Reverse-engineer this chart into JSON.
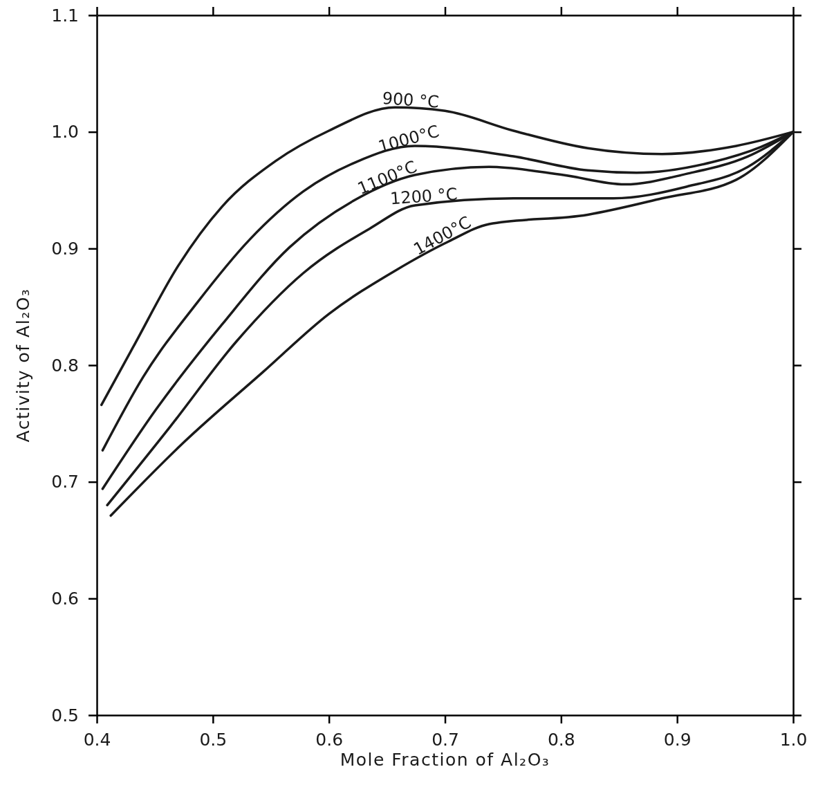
{
  "chart_data": {
    "type": "line",
    "xlabel": "Mole Fraction of Al₂O₃",
    "ylabel": "Activity of Al₂O₃",
    "xlim": [
      0.4,
      1.0
    ],
    "ylim": [
      0.5,
      1.1
    ],
    "xticks": [
      0.4,
      0.5,
      0.6,
      0.7,
      0.8,
      0.9,
      {
        "value": 1.0,
        "label": "1.0"
      }
    ],
    "yticks": [
      0.5,
      0.6,
      0.7,
      0.8,
      0.9,
      {
        "value": 1.0,
        "label": "1.0"
      },
      1.1
    ],
    "grid": false,
    "legend": false,
    "marker": "none",
    "line_style": "solid",
    "series": [
      {
        "name": "900 °C",
        "color": "#1a1a1a",
        "x": [
          0.404,
          0.431,
          0.47,
          0.508,
          0.554,
          0.6,
          0.657,
          0.7,
          0.759,
          0.823,
          0.887,
          0.951,
          1.0
        ],
        "values": [
          0.766,
          0.815,
          0.885,
          0.936,
          0.975,
          1.001,
          1.021,
          1.018,
          1.001,
          0.986,
          0.981,
          0.988,
          1.0
        ]
      },
      {
        "name": "1000°C",
        "color": "#1a1a1a",
        "x": [
          0.405,
          0.44,
          0.486,
          0.532,
          0.578,
          0.623,
          0.674,
          0.759,
          0.823,
          0.865,
          0.93,
          0.972,
          1.0
        ],
        "values": [
          0.727,
          0.79,
          0.853,
          0.908,
          0.949,
          0.974,
          0.988,
          0.979,
          0.967,
          0.965,
          0.974,
          0.987,
          1.0
        ]
      },
      {
        "name": "1100°C",
        "color": "#1a1a1a",
        "x": [
          0.405,
          0.451,
          0.508,
          0.566,
          0.623,
          0.674,
          0.738,
          0.802,
          0.855,
          0.908,
          0.961,
          1.0
        ],
        "values": [
          0.694,
          0.762,
          0.835,
          0.901,
          0.942,
          0.963,
          0.97,
          0.963,
          0.955,
          0.964,
          0.979,
          1.0
        ]
      },
      {
        "name": "1200 °C",
        "color": "#1a1a1a",
        "x": [
          0.409,
          0.463,
          0.52,
          0.578,
          0.635,
          0.674,
          0.759,
          0.845,
          0.908,
          0.961,
          1.0
        ],
        "values": [
          0.68,
          0.747,
          0.82,
          0.879,
          0.917,
          0.937,
          0.943,
          0.943,
          0.953,
          0.97,
          1.0
        ]
      },
      {
        "name": "1400°C",
        "color": "#1a1a1a",
        "x": [
          0.412,
          0.474,
          0.543,
          0.6,
          0.657,
          0.703,
          0.738,
          0.823,
          0.887,
          0.951,
          1.0
        ],
        "values": [
          0.671,
          0.733,
          0.794,
          0.844,
          0.881,
          0.906,
          0.921,
          0.929,
          0.943,
          0.959,
          1.0
        ]
      }
    ]
  }
}
